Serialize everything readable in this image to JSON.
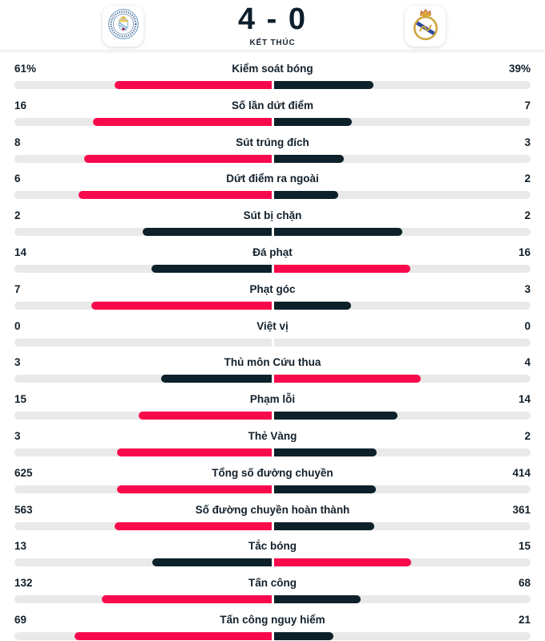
{
  "header": {
    "home_team": "Manchester City",
    "away_team": "Real Madrid",
    "score": "4 - 0",
    "status": "KẾT THÚC"
  },
  "colors": {
    "highlight": "#f8094b",
    "dark": "#0c2129",
    "track": "#e9e9e9",
    "text": "#13202b"
  },
  "stats": [
    {
      "label": "Kiểm soát bóng",
      "home_display": "61%",
      "away_display": "39%",
      "home": 61,
      "away": 39
    },
    {
      "label": "Số lần dứt điểm",
      "home_display": "16",
      "away_display": "7",
      "home": 16,
      "away": 7
    },
    {
      "label": "Sút trúng đích",
      "home_display": "8",
      "away_display": "3",
      "home": 8,
      "away": 3
    },
    {
      "label": "Dứt điểm ra ngoài",
      "home_display": "6",
      "away_display": "2",
      "home": 6,
      "away": 2
    },
    {
      "label": "Sút bị chặn",
      "home_display": "2",
      "away_display": "2",
      "home": 2,
      "away": 2
    },
    {
      "label": "Đá phạt",
      "home_display": "14",
      "away_display": "16",
      "home": 14,
      "away": 16
    },
    {
      "label": "Phạt góc",
      "home_display": "7",
      "away_display": "3",
      "home": 7,
      "away": 3
    },
    {
      "label": "Việt vị",
      "home_display": "0",
      "away_display": "0",
      "home": 0,
      "away": 0
    },
    {
      "label": "Thủ môn Cứu thua",
      "home_display": "3",
      "away_display": "4",
      "home": 3,
      "away": 4
    },
    {
      "label": "Phạm lỗi",
      "home_display": "15",
      "away_display": "14",
      "home": 15,
      "away": 14
    },
    {
      "label": "Thẻ Vàng",
      "home_display": "3",
      "away_display": "2",
      "home": 3,
      "away": 2
    },
    {
      "label": "Tổng số đường chuyền",
      "home_display": "625",
      "away_display": "414",
      "home": 625,
      "away": 414
    },
    {
      "label": "Số đường chuyền hoàn thành",
      "home_display": "563",
      "away_display": "361",
      "home": 563,
      "away": 361
    },
    {
      "label": "Tắc bóng",
      "home_display": "13",
      "away_display": "15",
      "home": 13,
      "away": 15
    },
    {
      "label": "Tấn công",
      "home_display": "132",
      "away_display": "68",
      "home": 132,
      "away": 68
    },
    {
      "label": "Tấn công nguy hiểm",
      "home_display": "69",
      "away_display": "21",
      "home": 69,
      "away": 21
    }
  ]
}
